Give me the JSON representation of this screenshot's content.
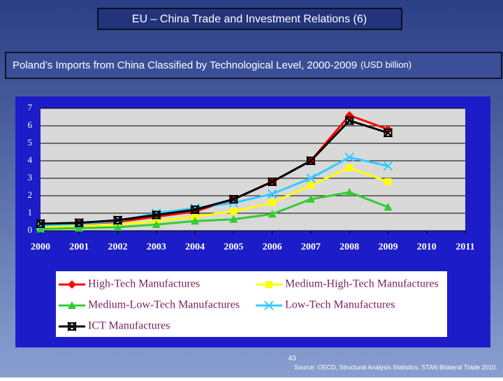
{
  "title": "EU – China Trade and Investment Relations (6)",
  "subtitle": "Poland’s Imports from China Classified by Technological Level, 2000-2009",
  "unit": "(USD billion)",
  "page_number": "43",
  "source": "Source: OECD, Structural Analysis Statistics, STAN Bilateral Trade 2010.",
  "chart_data": {
    "type": "line",
    "x": [
      2000,
      2001,
      2002,
      2003,
      2004,
      2005,
      2006,
      2007,
      2008,
      2009
    ],
    "xlim": [
      2000,
      2011
    ],
    "xticks": [
      2000,
      2001,
      2002,
      2003,
      2004,
      2005,
      2006,
      2007,
      2008,
      2009,
      2010,
      2011
    ],
    "ylim": [
      0,
      7
    ],
    "yticks": [
      0,
      1,
      2,
      3,
      4,
      5,
      6,
      7
    ],
    "grid": true,
    "legend": "bottom",
    "series": [
      {
        "name": "High-Tech Manufactures",
        "color": "#ff0000",
        "marker": "diamond",
        "values": [
          0.3,
          0.4,
          0.5,
          0.8,
          1.1,
          1.8,
          2.8,
          4.0,
          6.6,
          5.8
        ]
      },
      {
        "name": "Medium-High-Tech Manufactures",
        "color": "#ffff00",
        "marker": "square",
        "values": [
          0.2,
          0.25,
          0.35,
          0.55,
          0.8,
          1.1,
          1.6,
          2.6,
          3.6,
          2.8
        ]
      },
      {
        "name": "Medium-Low-Tech Manufactures",
        "color": "#33cc33",
        "marker": "triangle",
        "values": [
          0.1,
          0.15,
          0.2,
          0.35,
          0.55,
          0.65,
          0.95,
          1.8,
          2.2,
          1.35
        ]
      },
      {
        "name": "Low-Tech Manufactures",
        "color": "#33ccff",
        "marker": "x",
        "values": [
          0.3,
          0.4,
          0.55,
          1.0,
          1.3,
          1.6,
          2.1,
          3.0,
          4.2,
          3.7
        ]
      },
      {
        "name": "ICT Manufactures",
        "color": "#000000",
        "marker": "xbox",
        "values": [
          0.4,
          0.45,
          0.6,
          0.9,
          1.2,
          1.8,
          2.8,
          4.0,
          6.3,
          5.6
        ]
      }
    ]
  }
}
